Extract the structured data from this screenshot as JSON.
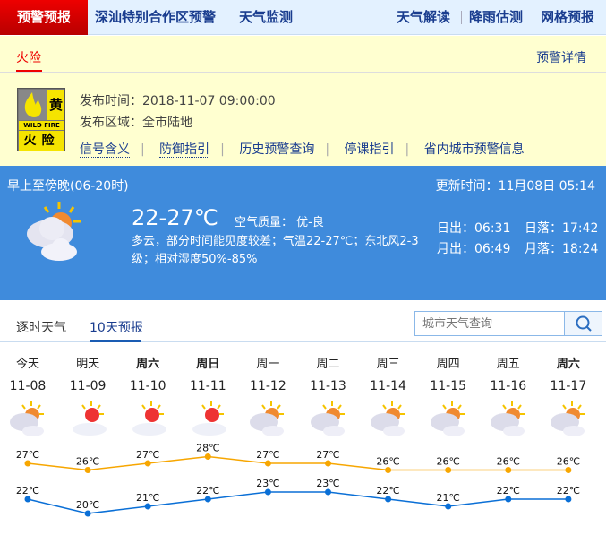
{
  "nav": {
    "active": "预警预报",
    "items": [
      "深汕特别合作区预警",
      "天气监测"
    ],
    "right": [
      "天气解读",
      "降雨估测",
      "网格预报"
    ]
  },
  "warning": {
    "tab": "火险",
    "detail": "预警详情",
    "badge": {
      "color": "黄",
      "en": "WILD FIRE",
      "name": "火险"
    },
    "time_label": "发布时间：",
    "time": "2018-11-07 09:00:00",
    "area_label": "发布区域：",
    "area": "全市陆地",
    "links": [
      "信号含义",
      "防御指引",
      "历史预警查询",
      "停课指引",
      "省内城市预警信息"
    ]
  },
  "now": {
    "period": "早上至傍晚(06-20时)",
    "update": "更新时间：11月08日 05:14",
    "temp": "22-27℃",
    "aq": "空气质量： 优-良",
    "desc": "多云，部分时间能见度较差；气温22-27℃；东北风2-3级；相对湿度50%-85%",
    "sunrise": "日出：06:31",
    "sunset": "日落：17:42",
    "moonrise": "月出：06:49",
    "moonset": "月落：18:24",
    "icon": "partly-cloudy"
  },
  "tabs": [
    "逐时天气",
    "10天预报"
  ],
  "search": {
    "placeholder": "城市天气查询"
  },
  "colors": {
    "high": "#f7a600",
    "low": "#0a6fd6",
    "accent": "#3f8bdc",
    "alert": "#e00"
  },
  "chart_data": {
    "type": "line",
    "categories": [
      "11-08",
      "11-09",
      "11-10",
      "11-11",
      "11-12",
      "11-13",
      "11-14",
      "11-15",
      "11-16",
      "11-17"
    ],
    "days": [
      "今天",
      "明天",
      "周六",
      "周日",
      "周一",
      "周二",
      "周三",
      "周四",
      "周五",
      "周六"
    ],
    "icons": [
      "partly-cloudy",
      "sunny-cloudy",
      "sunny-cloudy",
      "sunny-cloudy",
      "partly-cloudy",
      "partly-cloudy",
      "partly-cloudy",
      "partly-cloudy",
      "partly-cloudy",
      "partly-cloudy"
    ],
    "series": [
      {
        "values": [
          27,
          26,
          27,
          28,
          27,
          27,
          26,
          26,
          26,
          26
        ]
      },
      {
        "values": [
          22,
          20,
          21,
          22,
          23,
          23,
          22,
          21,
          22,
          22
        ]
      }
    ],
    "unit": "℃"
  }
}
